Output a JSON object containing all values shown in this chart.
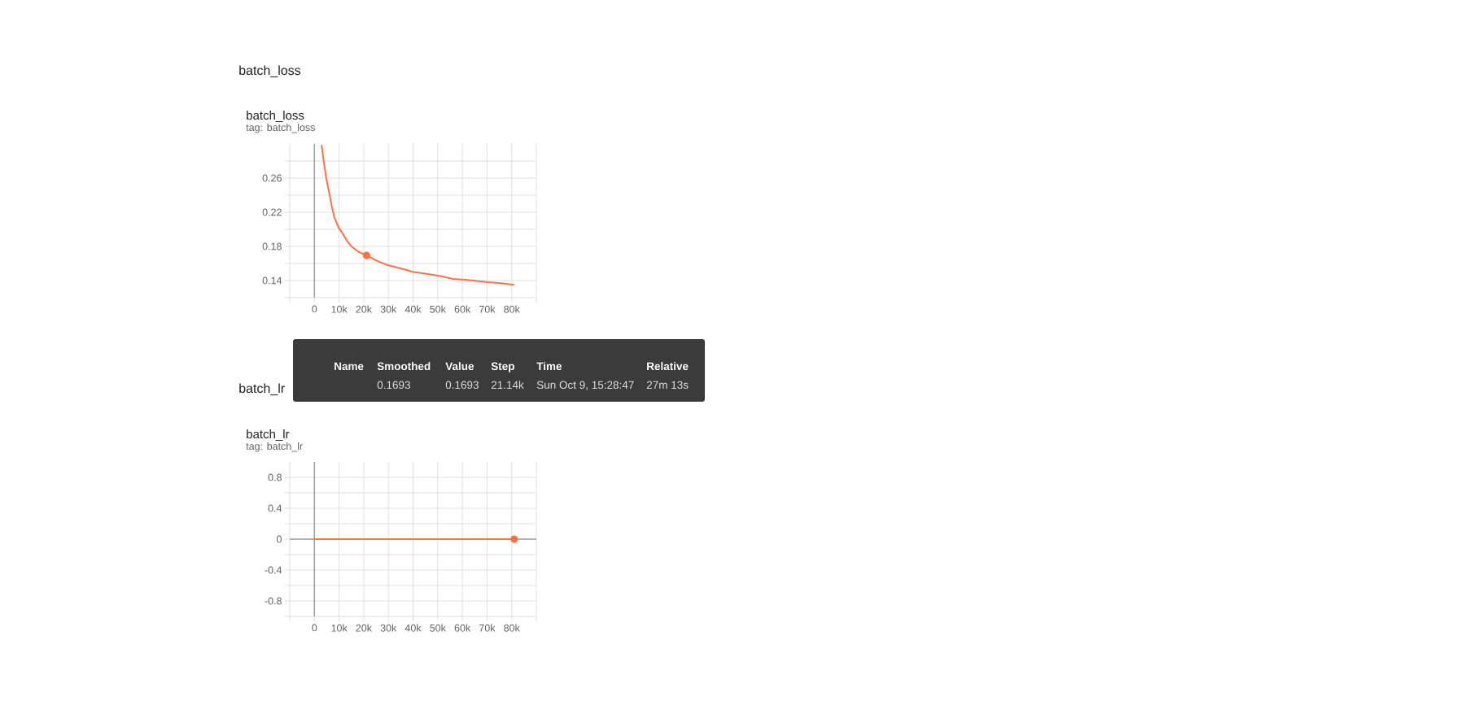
{
  "chart_data": [
    {
      "type": "line",
      "title": "batch_loss",
      "subtitle": "tag: batch_loss",
      "annotations": [
        "batch_loss",
        "Name",
        "Smoothed",
        "Value",
        "Step",
        "Time",
        "Relative",
        "0.1693",
        "0.1693",
        "21.14k",
        "Sun Oct 9, 15:28:47",
        "27m 13s"
      ],
      "series": [
        {
          "color": "#ff7043",
          "x": [
            2950,
            3700,
            4800,
            6200,
            7000,
            8100,
            9800,
            11700,
            13300,
            15000,
            17700,
            21140,
            25400,
            29700,
            35200,
            40100,
            45000,
            51600,
            56000,
            61400,
            70200,
            75600,
            80800
          ],
          "values": [
            0.298,
            0.281,
            0.26,
            0.24,
            0.227,
            0.214,
            0.202,
            0.194,
            0.186,
            0.18,
            0.174,
            0.1693,
            0.163,
            0.158,
            0.154,
            0.15,
            0.148,
            0.145,
            0.142,
            0.141,
            0.138,
            0.137,
            0.135
          ]
        },
        {
          "type": "scatter",
          "color": "#ff7043",
          "marker": "circle",
          "x": [
            21140
          ],
          "values": [
            0.1693
          ]
        }
      ],
      "xlim": [
        -10000,
        90000
      ],
      "xticks": [
        {
          "value": -10000,
          "label": null
        },
        0,
        {
          "value": 10000,
          "label": "10k"
        },
        {
          "value": 20000,
          "label": "20k"
        },
        {
          "value": 30000,
          "label": "30k"
        },
        {
          "value": 40000,
          "label": "40k"
        },
        {
          "value": 50000,
          "label": "50k"
        },
        {
          "value": 60000,
          "label": "60k"
        },
        {
          "value": 70000,
          "label": "70k"
        },
        {
          "value": 80000,
          "label": "80k"
        },
        {
          "value": 90000,
          "label": null
        }
      ],
      "ylim": [
        0.12,
        0.3
      ],
      "yticks": [
        {
          "value": 0.12,
          "label": null
        },
        0.14,
        {
          "value": 0.16,
          "label": null
        },
        0.18,
        {
          "value": 0.2,
          "label": null
        },
        0.22,
        {
          "value": 0.24,
          "label": null
        },
        0.26,
        {
          "value": 0.28,
          "label": null
        }
      ],
      "grid": true
    },
    {
      "type": "line",
      "title": "batch_lr",
      "subtitle": "tag: batch_lr",
      "annotations": [
        "batch_lr"
      ],
      "series": [
        {
          "color": "#ff7043",
          "x": [
            0,
            81000
          ],
          "values": [
            0,
            0
          ]
        },
        {
          "type": "scatter",
          "color": "#ff7043",
          "marker": "circle",
          "x": [
            81000
          ],
          "values": [
            0
          ]
        }
      ],
      "xlim": [
        -10000,
        90000
      ],
      "xticks": [
        {
          "value": -10000,
          "label": null
        },
        0,
        {
          "value": 10000,
          "label": "10k"
        },
        {
          "value": 20000,
          "label": "20k"
        },
        {
          "value": 30000,
          "label": "30k"
        },
        {
          "value": 40000,
          "label": "40k"
        },
        {
          "value": 50000,
          "label": "50k"
        },
        {
          "value": 60000,
          "label": "60k"
        },
        {
          "value": 70000,
          "label": "70k"
        },
        {
          "value": 80000,
          "label": "80k"
        },
        {
          "value": 90000,
          "label": null
        }
      ],
      "ylim": [
        -1,
        1
      ],
      "yticks": [
        {
          "value": -1,
          "label": null
        },
        -0.8,
        {
          "value": -0.6,
          "label": null
        },
        -0.4,
        {
          "value": -0.2,
          "label": null
        },
        0,
        {
          "value": 0.2,
          "label": null
        },
        0.4,
        {
          "value": 0.6,
          "label": null
        },
        0.8
      ],
      "grid": true
    }
  ]
}
